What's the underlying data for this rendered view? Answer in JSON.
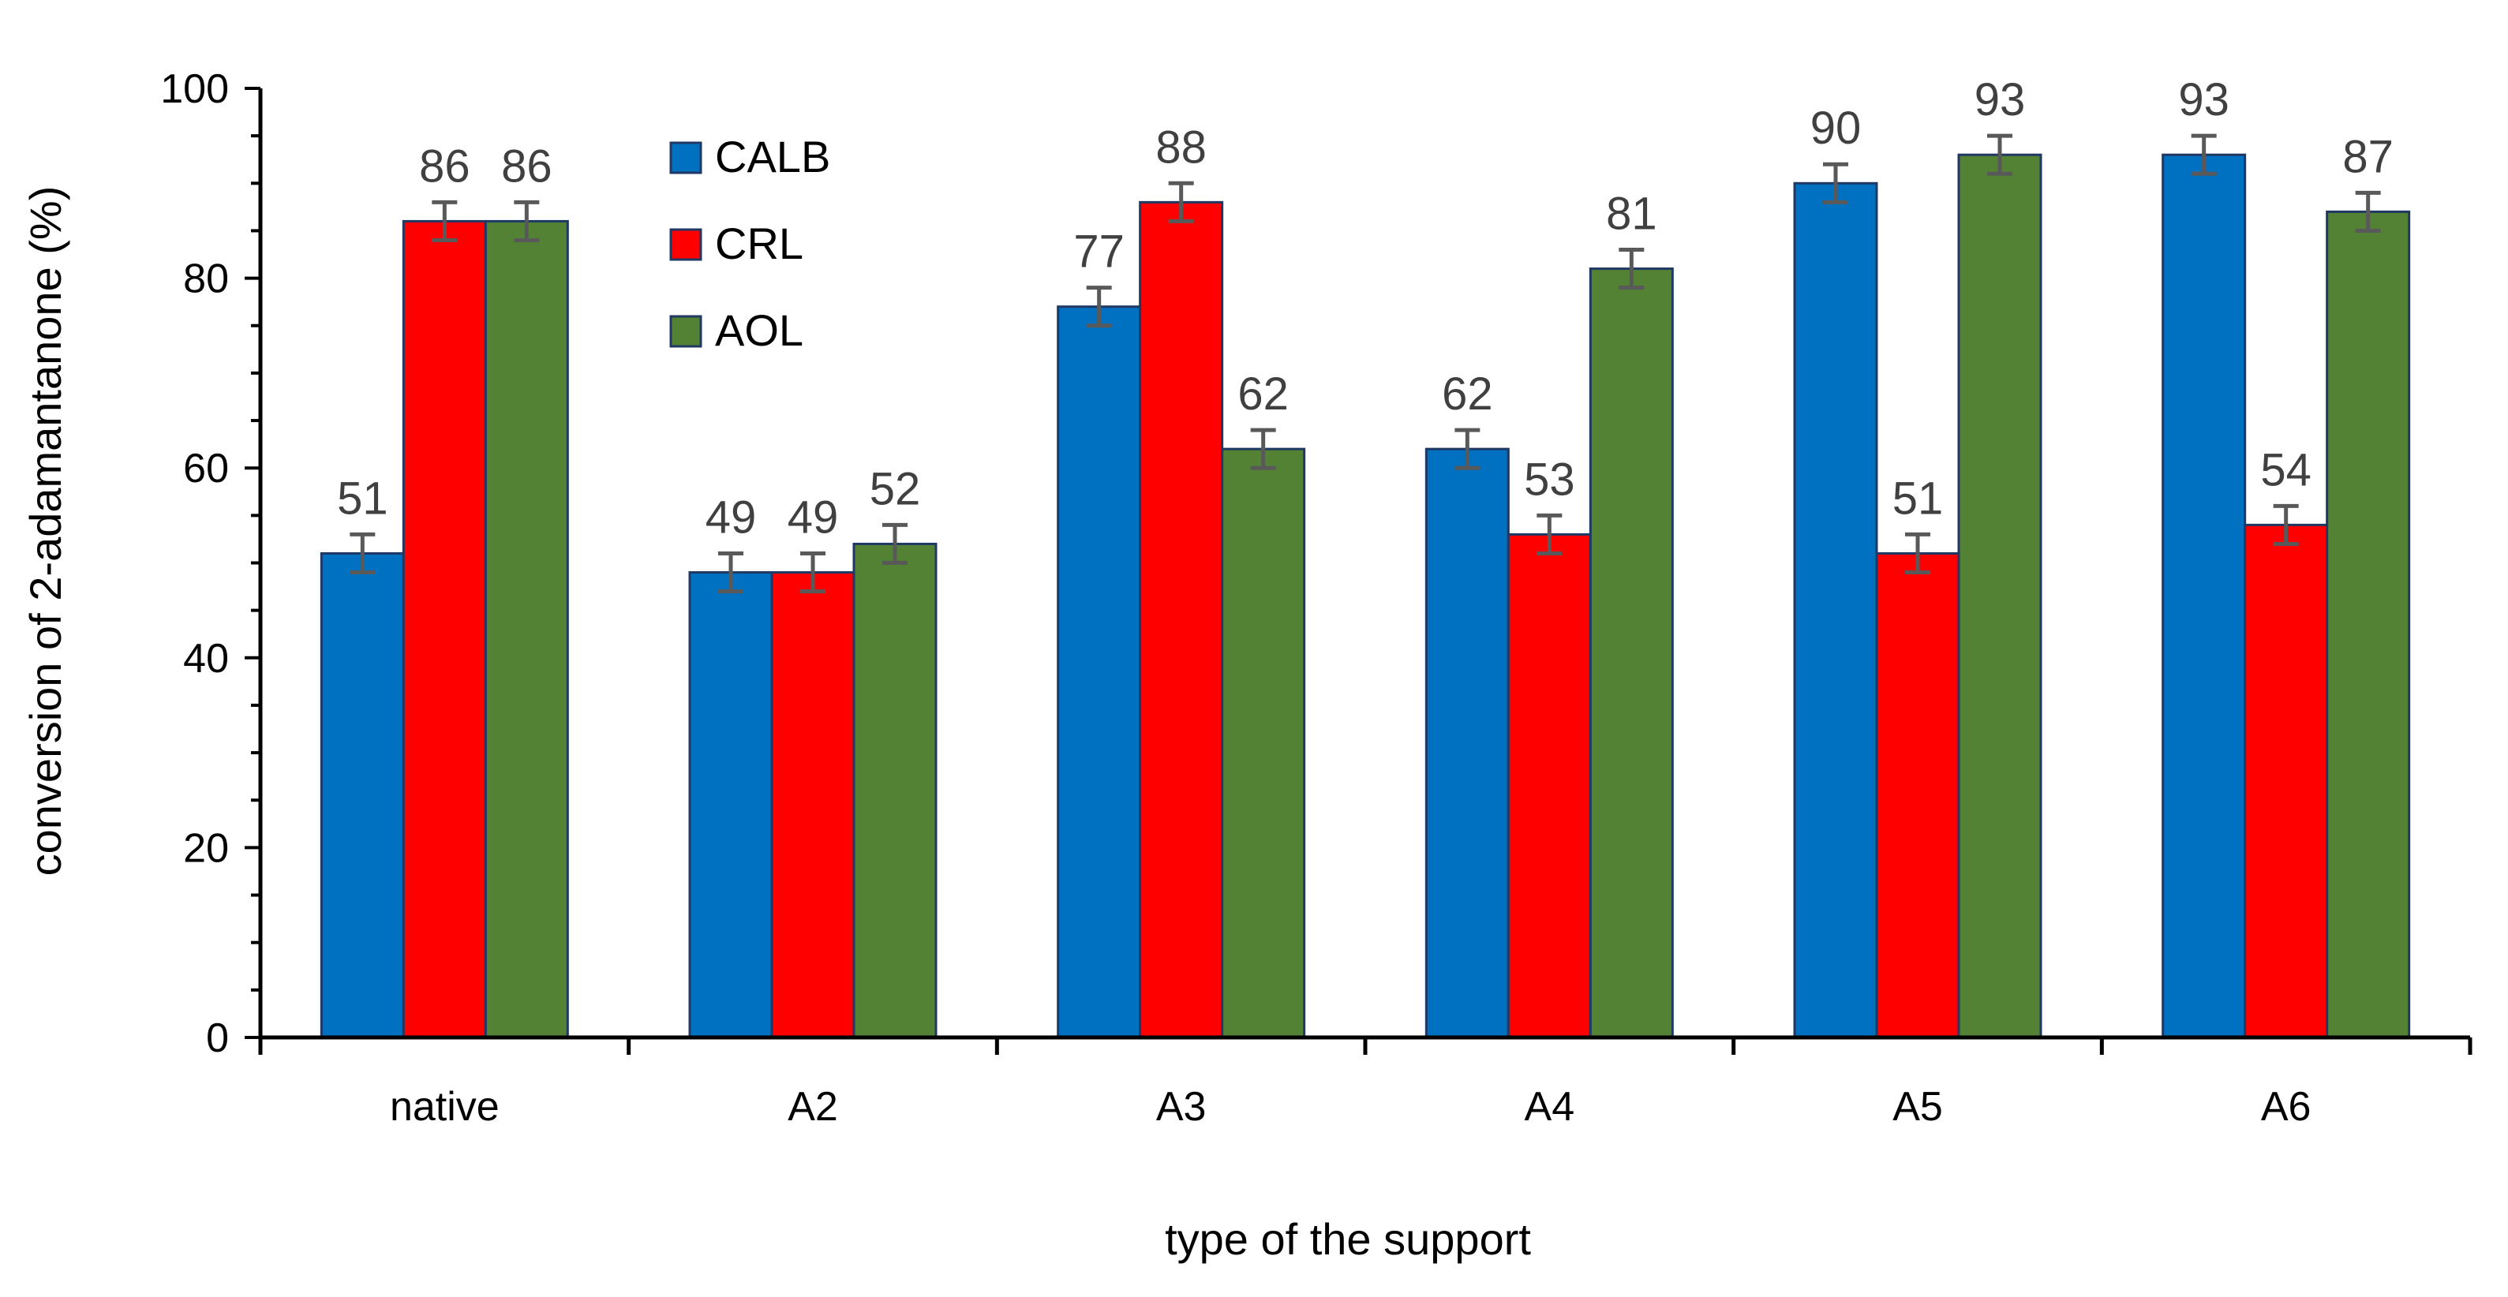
{
  "chart_data": {
    "type": "bar",
    "title": "",
    "xlabel": "type of the support",
    "ylabel": "conversion of 2-adamantanone (%)",
    "ylim": [
      0,
      100
    ],
    "yticks": [
      0,
      20,
      40,
      60,
      80,
      100
    ],
    "ytick_labels": [
      "0",
      "20",
      "40",
      "60",
      "80",
      "100"
    ],
    "grid": false,
    "legend_position": "top-left",
    "categories": [
      "native",
      "A2",
      "A3",
      "A4",
      "A5",
      "A6"
    ],
    "series": [
      {
        "name": "CALB",
        "color": "#0070C0",
        "values": [
          51,
          49,
          77,
          62,
          90,
          93
        ],
        "error": [
          2,
          2,
          2,
          2,
          2,
          2
        ]
      },
      {
        "name": "CRL",
        "color": "#FF0000",
        "values": [
          86,
          49,
          88,
          53,
          51,
          54
        ],
        "error": [
          2,
          2,
          2,
          2,
          2,
          2
        ]
      },
      {
        "name": "AOL",
        "color": "#548235",
        "values": [
          86,
          52,
          62,
          81,
          93,
          87
        ],
        "error": [
          2,
          2,
          2,
          2,
          2,
          2
        ]
      }
    ],
    "data_label_color": "#404040",
    "error_bar_color": "#595959"
  }
}
